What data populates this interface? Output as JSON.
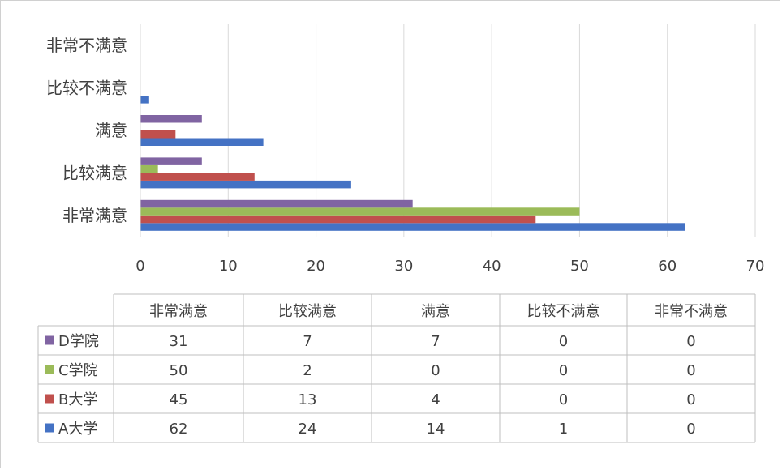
{
  "chart_data": {
    "type": "bar",
    "orientation": "horizontal",
    "categories": [
      "非常满意",
      "比较满意",
      "满意",
      "比较不满意",
      "非常不满意"
    ],
    "series": [
      {
        "name": "A大学",
        "color": "#4472C4",
        "values": [
          62,
          24,
          14,
          1,
          0
        ]
      },
      {
        "name": "B大学",
        "color": "#C0504D",
        "values": [
          45,
          13,
          4,
          0,
          0
        ]
      },
      {
        "name": "C学院",
        "color": "#9BBB59",
        "values": [
          50,
          2,
          0,
          0,
          0
        ]
      },
      {
        "name": "D学院",
        "color": "#8064A2",
        "values": [
          31,
          7,
          7,
          0,
          0
        ]
      }
    ],
    "xlim": [
      0,
      70
    ],
    "xticks": [
      "0",
      "10",
      "20",
      "30",
      "40",
      "50",
      "60",
      "70"
    ],
    "grid": true,
    "legend": "data-table",
    "table_rows": [
      "D学院",
      "C学院",
      "B大学",
      "A大学"
    ]
  }
}
